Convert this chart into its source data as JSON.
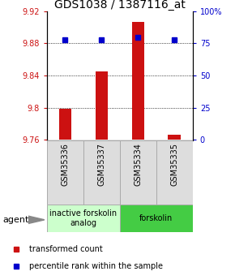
{
  "title": "GDS1038 / 1387116_at",
  "samples": [
    "GSM35336",
    "GSM35337",
    "GSM35334",
    "GSM35335"
  ],
  "bar_values": [
    9.799,
    9.845,
    9.907,
    9.767
  ],
  "percentile_values": [
    78,
    78,
    80,
    78
  ],
  "ymin": 9.76,
  "ymax": 9.92,
  "yticks": [
    9.76,
    9.8,
    9.84,
    9.88,
    9.92
  ],
  "right_yticks": [
    0,
    25,
    50,
    75,
    100
  ],
  "bar_color": "#cc1111",
  "percentile_color": "#0000cc",
  "groups": [
    {
      "label": "inactive forskolin\nanalog",
      "color": "#ccffcc",
      "samples": [
        0,
        1
      ]
    },
    {
      "label": "forskolin",
      "color": "#44cc44",
      "samples": [
        2,
        3
      ]
    }
  ],
  "agent_label": "agent",
  "legend": [
    {
      "color": "#cc1111",
      "label": "transformed count"
    },
    {
      "color": "#0000cc",
      "label": "percentile rank within the sample"
    }
  ],
  "title_fontsize": 10,
  "tick_fontsize": 7,
  "sample_fontsize": 7,
  "group_fontsize": 7,
  "legend_fontsize": 7,
  "agent_fontsize": 8
}
